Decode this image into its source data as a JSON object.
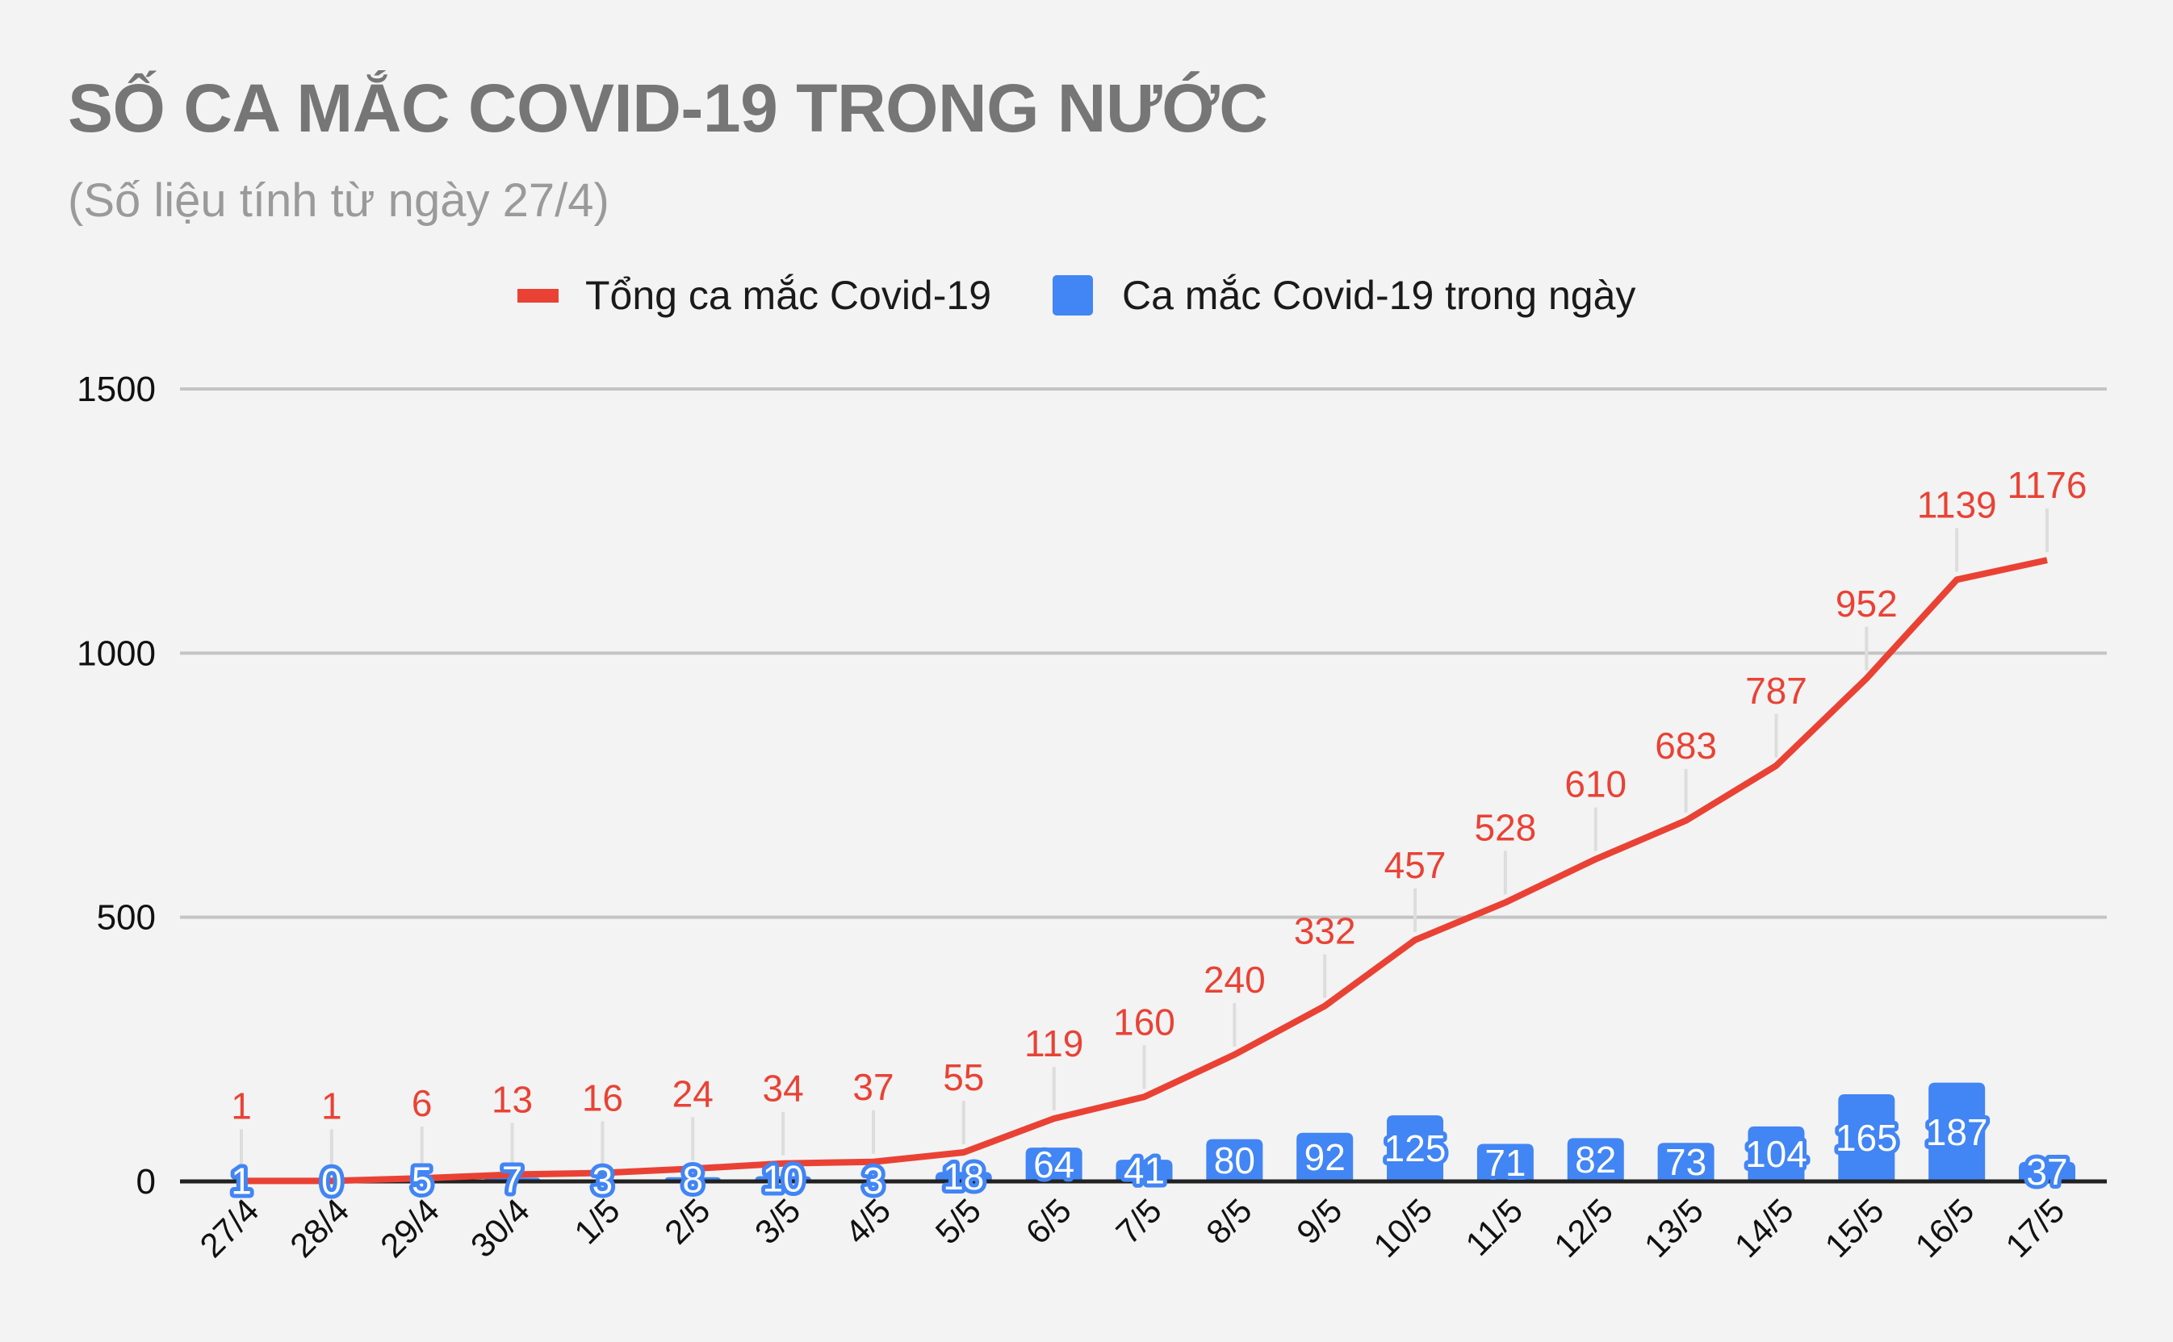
{
  "header": {
    "title": "SỐ CA MẮC COVID-19 TRONG NƯỚC",
    "subtitle": "(Số liệu tính từ ngày 27/4)"
  },
  "legend": {
    "items": [
      {
        "label": "Tổng ca mắc Covid-19",
        "type": "line",
        "color": "#e94235"
      },
      {
        "label": "Ca mắc Covid-19 trong ngày",
        "type": "bar",
        "color": "#4285f4"
      }
    ]
  },
  "colors": {
    "background": "#f3f3f3",
    "line": "#e94235",
    "bar": "#4285f4",
    "grid": "#c4c4c4",
    "axis": "#222222",
    "leader": "#dddddd"
  },
  "chart_data": {
    "type": "bar+line",
    "title": "SỐ CA MẮC COVID-19 TRONG NƯỚC",
    "subtitle": "(Số liệu tính từ ngày 27/4)",
    "xlabel": "",
    "ylabel": "",
    "ylim": [
      0,
      1500
    ],
    "yticks": [
      0,
      500,
      1000,
      1500
    ],
    "grid": true,
    "legend_position": "top",
    "categories": [
      "27/4",
      "28/4",
      "29/4",
      "30/4",
      "1/5",
      "2/5",
      "3/5",
      "4/5",
      "5/5",
      "6/5",
      "7/5",
      "8/5",
      "9/5",
      "10/5",
      "11/5",
      "12/5",
      "13/5",
      "14/5",
      "15/5",
      "16/5",
      "17/5"
    ],
    "series": [
      {
        "name": "Tổng ca mắc Covid-19",
        "type": "line",
        "color": "#e94235",
        "values": [
          1,
          1,
          6,
          13,
          16,
          24,
          34,
          37,
          55,
          119,
          160,
          240,
          332,
          457,
          528,
          610,
          683,
          787,
          952,
          1139,
          1176
        ]
      },
      {
        "name": "Ca mắc Covid-19 trong ngày",
        "type": "bar",
        "color": "#4285f4",
        "values": [
          1,
          0,
          5,
          7,
          3,
          8,
          10,
          3,
          18,
          64,
          41,
          80,
          92,
          125,
          71,
          82,
          73,
          104,
          165,
          187,
          37
        ]
      }
    ]
  }
}
